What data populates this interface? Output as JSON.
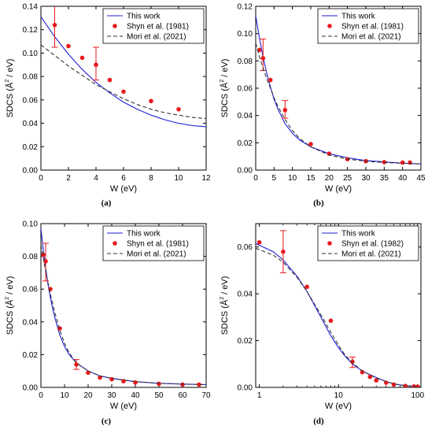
{
  "chart_data": [
    {
      "id": "a",
      "type": "line",
      "caption": "(a)",
      "xlabel": "W (eV)",
      "ylabel_main": "SDCS (",
      "ylabel_sym": "Å",
      "ylabel_exp": "2",
      "ylabel_end": " / eV)",
      "xscale": "linear",
      "xlim": [
        0,
        12
      ],
      "ylim": [
        0,
        0.14
      ],
      "xticks": [
        0,
        2,
        4,
        6,
        8,
        10,
        12
      ],
      "xticklabels": [
        "0",
        "2",
        "4",
        "6",
        "8",
        "10",
        "12"
      ],
      "yticks": [
        0,
        0.02,
        0.04,
        0.06,
        0.08,
        0.1,
        0.12,
        0.14
      ],
      "yticklabels": [
        "0.00",
        "0.02",
        "0.04",
        "0.06",
        "0.08",
        "0.10",
        "0.12",
        "0.14"
      ],
      "legend_position": "top-right",
      "series": [
        {
          "name": "This work",
          "kind": "line",
          "color": "#1f1fd6",
          "dash": "none",
          "points": [
            [
              0,
              0.131
            ],
            [
              1,
              0.114
            ],
            [
              2,
              0.099
            ],
            [
              3,
              0.086
            ],
            [
              4,
              0.075
            ],
            [
              5,
              0.066
            ],
            [
              6,
              0.058
            ],
            [
              7,
              0.052
            ],
            [
              8,
              0.047
            ],
            [
              9,
              0.043
            ],
            [
              10,
              0.04
            ],
            [
              11,
              0.038
            ],
            [
              12,
              0.037
            ]
          ]
        },
        {
          "name": "Shyn et al. (1981)",
          "kind": "scatter",
          "color": "#e8191c",
          "points": [
            [
              1,
              0.124
            ],
            [
              2,
              0.106
            ],
            [
              3,
              0.096
            ],
            [
              4,
              0.09
            ],
            [
              5,
              0.077
            ],
            [
              6,
              0.067
            ],
            [
              8,
              0.059
            ],
            [
              10,
              0.052
            ]
          ],
          "errors": [
            [
              1,
              0.105,
              0.144
            ],
            [
              4,
              0.077,
              0.105
            ]
          ]
        },
        {
          "name": "Mori et al. (2021)",
          "kind": "line",
          "color": "#333333",
          "dash": "5,3",
          "points": [
            [
              0,
              0.107
            ],
            [
              1,
              0.098
            ],
            [
              2,
              0.089
            ],
            [
              3,
              0.081
            ],
            [
              4,
              0.073
            ],
            [
              5,
              0.067
            ],
            [
              6,
              0.061
            ],
            [
              7,
              0.056
            ],
            [
              8,
              0.052
            ],
            [
              9,
              0.049
            ],
            [
              10,
              0.047
            ],
            [
              11,
              0.045
            ],
            [
              12,
              0.044
            ]
          ]
        }
      ]
    },
    {
      "id": "b",
      "type": "line",
      "caption": "(b)",
      "xlabel": "W (eV)",
      "ylabel_main": "SDCS (",
      "ylabel_sym": "Å",
      "ylabel_exp": "2",
      "ylabel_end": " / eV)",
      "xscale": "linear",
      "xlim": [
        0,
        45
      ],
      "ylim": [
        0,
        0.12
      ],
      "xticks": [
        0,
        5,
        10,
        15,
        20,
        25,
        30,
        35,
        40,
        45
      ],
      "xticklabels": [
        "0",
        "5",
        "10",
        "15",
        "20",
        "25",
        "30",
        "35",
        "40",
        "45"
      ],
      "yticks": [
        0,
        0.02,
        0.04,
        0.06,
        0.08,
        0.1,
        0.12
      ],
      "yticklabels": [
        "0.00",
        "0.02",
        "0.04",
        "0.06",
        "0.08",
        "0.10",
        "0.12"
      ],
      "legend_position": "top-right",
      "series": [
        {
          "name": "This work",
          "kind": "line",
          "color": "#1f1fd6",
          "dash": "none",
          "points": [
            [
              0,
              0.113
            ],
            [
              1,
              0.097
            ],
            [
              2,
              0.083
            ],
            [
              3,
              0.071
            ],
            [
              4,
              0.061
            ],
            [
              5,
              0.052
            ],
            [
              6,
              0.045
            ],
            [
              8,
              0.034
            ],
            [
              10,
              0.027
            ],
            [
              12,
              0.022
            ],
            [
              15,
              0.017
            ],
            [
              20,
              0.012
            ],
            [
              25,
              0.009
            ],
            [
              30,
              0.007
            ],
            [
              35,
              0.006
            ],
            [
              40,
              0.005
            ],
            [
              45,
              0.0045
            ]
          ]
        },
        {
          "name": "Shyn et al. (1981)",
          "kind": "scatter",
          "color": "#e8191c",
          "points": [
            [
              1,
              0.088
            ],
            [
              2,
              0.082
            ],
            [
              4,
              0.066
            ],
            [
              8,
              0.044
            ],
            [
              15,
              0.019
            ],
            [
              20,
              0.012
            ],
            [
              25,
              0.008
            ],
            [
              30,
              0.0065
            ],
            [
              35,
              0.0058
            ],
            [
              40,
              0.0055
            ],
            [
              42,
              0.0055
            ]
          ],
          "errors": [
            [
              2,
              0.073,
              0.096
            ],
            [
              8,
              0.038,
              0.051
            ]
          ]
        },
        {
          "name": "Mori et al. (2021)",
          "kind": "line",
          "color": "#333333",
          "dash": "5,3",
          "points": [
            [
              0,
              0.093
            ],
            [
              1,
              0.083
            ],
            [
              2,
              0.075
            ],
            [
              3,
              0.067
            ],
            [
              4,
              0.06
            ],
            [
              5,
              0.053
            ],
            [
              6,
              0.047
            ],
            [
              8,
              0.037
            ],
            [
              10,
              0.029
            ],
            [
              12,
              0.023
            ],
            [
              15,
              0.017
            ],
            [
              20,
              0.011
            ],
            [
              25,
              0.008
            ],
            [
              30,
              0.0065
            ],
            [
              35,
              0.0055
            ],
            [
              40,
              0.005
            ],
            [
              45,
              0.0045
            ]
          ]
        }
      ]
    },
    {
      "id": "c",
      "type": "line",
      "caption": "(c)",
      "xlabel": "W (eV)",
      "ylabel_main": "SDCS (",
      "ylabel_sym": "Å",
      "ylabel_exp": "2",
      "ylabel_end": " / eV)",
      "xscale": "linear",
      "xlim": [
        0,
        70
      ],
      "ylim": [
        0,
        0.1
      ],
      "xticks": [
        0,
        10,
        20,
        30,
        40,
        50,
        60,
        70
      ],
      "xticklabels": [
        "0",
        "10",
        "20",
        "30",
        "40",
        "50",
        "60",
        "70"
      ],
      "yticks": [
        0,
        0.02,
        0.04,
        0.06,
        0.08,
        0.1
      ],
      "yticklabels": [
        "0.00",
        "0.02",
        "0.04",
        "0.06",
        "0.08",
        "0.10"
      ],
      "legend_position": "top-right",
      "series": [
        {
          "name": "This work",
          "kind": "line",
          "color": "#1f1fd6",
          "dash": "none",
          "points": [
            [
              0,
              0.097
            ],
            [
              1,
              0.084
            ],
            [
              2,
              0.073
            ],
            [
              3,
              0.063
            ],
            [
              4,
              0.055
            ],
            [
              5,
              0.048
            ],
            [
              6,
              0.042
            ],
            [
              8,
              0.032
            ],
            [
              10,
              0.025
            ],
            [
              12,
              0.02
            ],
            [
              15,
              0.015
            ],
            [
              20,
              0.01
            ],
            [
              25,
              0.007
            ],
            [
              30,
              0.0055
            ],
            [
              40,
              0.0035
            ],
            [
              50,
              0.0025
            ],
            [
              60,
              0.002
            ],
            [
              70,
              0.0017
            ]
          ]
        },
        {
          "name": "Shyn et al. (1981)",
          "kind": "scatter",
          "color": "#e8191c",
          "points": [
            [
              1,
              0.081
            ],
            [
              2,
              0.077
            ],
            [
              4,
              0.06
            ],
            [
              8,
              0.036
            ],
            [
              15,
              0.014
            ],
            [
              20,
              0.009
            ],
            [
              25,
              0.006
            ],
            [
              30,
              0.005
            ],
            [
              35,
              0.0038
            ],
            [
              40,
              0.003
            ],
            [
              50,
              0.0022
            ],
            [
              60,
              0.0017
            ],
            [
              67,
              0.0017
            ]
          ],
          "errors": [
            [
              2,
              0.065,
              0.088
            ],
            [
              15,
              0.011,
              0.017
            ]
          ]
        },
        {
          "name": "Mori et al. (2021)",
          "kind": "line",
          "color": "#333333",
          "dash": "5,3",
          "points": [
            [
              0,
              0.087
            ],
            [
              1,
              0.079
            ],
            [
              2,
              0.071
            ],
            [
              3,
              0.064
            ],
            [
              4,
              0.057
            ],
            [
              5,
              0.051
            ],
            [
              6,
              0.045
            ],
            [
              8,
              0.035
            ],
            [
              10,
              0.027
            ],
            [
              12,
              0.021
            ],
            [
              15,
              0.015
            ],
            [
              20,
              0.01
            ],
            [
              25,
              0.007
            ],
            [
              30,
              0.0055
            ],
            [
              40,
              0.0035
            ],
            [
              50,
              0.0025
            ],
            [
              60,
              0.002
            ],
            [
              70,
              0.0017
            ]
          ]
        }
      ]
    },
    {
      "id": "d",
      "type": "line",
      "caption": "(d)",
      "xlabel": "W (eV)",
      "ylabel_main": "SDCS (",
      "ylabel_sym": "Å",
      "ylabel_exp": "2",
      "ylabel_end": " / eV)",
      "xscale": "log",
      "xlim": [
        0.9,
        110
      ],
      "ylim": [
        0,
        0.07
      ],
      "xticks": [
        1,
        10,
        100
      ],
      "xticklabels": [
        "1",
        "10",
        "100"
      ],
      "yticks": [
        0,
        0.02,
        0.04,
        0.06
      ],
      "yticklabels": [
        "0.00",
        "0.02",
        "0.04",
        "0.06"
      ],
      "legend_position": "top-right",
      "series": [
        {
          "name": "This work",
          "kind": "line",
          "color": "#1f1fd6",
          "dash": "none",
          "points": [
            [
              0.9,
              0.0615
            ],
            [
              1.5,
              0.058
            ],
            [
              2,
              0.0545
            ],
            [
              3,
              0.0475
            ],
            [
              4,
              0.041
            ],
            [
              5,
              0.035
            ],
            [
              6,
              0.03
            ],
            [
              8,
              0.022
            ],
            [
              10,
              0.017
            ],
            [
              12,
              0.0135
            ],
            [
              15,
              0.01
            ],
            [
              20,
              0.007
            ],
            [
              30,
              0.0042
            ],
            [
              40,
              0.0025
            ],
            [
              50,
              0.0015
            ],
            [
              70,
              0.0007
            ],
            [
              100,
              0.0003
            ],
            [
              110,
              0.0002
            ]
          ]
        },
        {
          "name": "Shyn et al. (1982)",
          "kind": "scatter",
          "color": "#e8191c",
          "points": [
            [
              1,
              0.062
            ],
            [
              2,
              0.058
            ],
            [
              4,
              0.043
            ],
            [
              8,
              0.0285
            ],
            [
              15,
              0.011
            ],
            [
              20,
              0.0065
            ],
            [
              25,
              0.0045
            ],
            [
              30,
              0.003
            ],
            [
              40,
              0.002
            ],
            [
              50,
              0.0012
            ],
            [
              70,
              0.0006
            ],
            [
              90,
              0.0004
            ],
            [
              100,
              0.0003
            ]
          ],
          "errors": [
            [
              2,
              0.049,
              0.067
            ],
            [
              15,
              0.0085,
              0.013
            ]
          ]
        },
        {
          "name": "Mori et al. (2021)",
          "kind": "line",
          "color": "#333333",
          "dash": "5,3",
          "points": [
            [
              0.9,
              0.0595
            ],
            [
              1.5,
              0.0565
            ],
            [
              2,
              0.0535
            ],
            [
              3,
              0.047
            ],
            [
              4,
              0.041
            ],
            [
              5,
              0.0355
            ],
            [
              6,
              0.031
            ],
            [
              8,
              0.0235
            ],
            [
              10,
              0.018
            ],
            [
              12,
              0.014
            ],
            [
              15,
              0.0105
            ],
            [
              20,
              0.007
            ],
            [
              30,
              0.004
            ],
            [
              40,
              0.0025
            ],
            [
              50,
              0.0015
            ],
            [
              70,
              0.0007
            ],
            [
              100,
              0.0003
            ],
            [
              110,
              0.0002
            ]
          ]
        }
      ]
    }
  ]
}
